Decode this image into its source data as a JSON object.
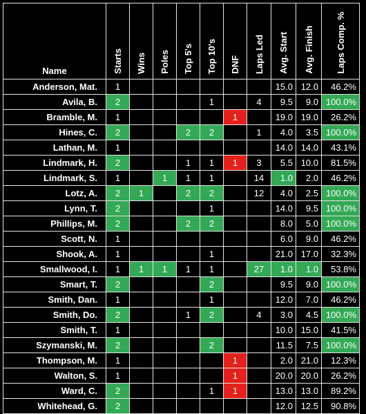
{
  "columns": [
    "Name",
    "Starts",
    "Wins",
    "Poles",
    "Top 5's",
    "Top 10's",
    "DNF",
    "Laps Led",
    "Avg. Start",
    "Avg. Finish",
    "Laps Comp. %"
  ],
  "colors": {
    "highlight_green": "#33a855",
    "highlight_red": "#e4211c",
    "background": "#000000",
    "text": "#ffffff"
  },
  "rows": [
    {
      "name": "Anderson, Mat.",
      "starts": "1",
      "wins": "",
      "poles": "",
      "top5": "",
      "top10": "",
      "dnf": "",
      "laps_led": "",
      "avg_start": "15.0",
      "avg_finish": "12.0",
      "laps_comp": "46.2%",
      "hl": []
    },
    {
      "name": "Avila, B.",
      "starts": "2",
      "wins": "",
      "poles": "",
      "top5": "",
      "top10": "1",
      "dnf": "",
      "laps_led": "4",
      "avg_start": "9.5",
      "avg_finish": "9.0",
      "laps_comp": "100.0%",
      "hl": [
        "starts",
        "laps_comp"
      ]
    },
    {
      "name": "Bramble, M.",
      "starts": "1",
      "wins": "",
      "poles": "",
      "top5": "",
      "top10": "",
      "dnf": "1",
      "laps_led": "",
      "avg_start": "19.0",
      "avg_finish": "19.0",
      "laps_comp": "26.2%",
      "hl": [
        "dnf"
      ]
    },
    {
      "name": "Hines, C.",
      "starts": "2",
      "wins": "",
      "poles": "",
      "top5": "2",
      "top10": "2",
      "dnf": "",
      "laps_led": "1",
      "avg_start": "4.0",
      "avg_finish": "3.5",
      "laps_comp": "100.0%",
      "hl": [
        "starts",
        "top5",
        "top10",
        "laps_comp"
      ]
    },
    {
      "name": "Lathan, M.",
      "starts": "1",
      "wins": "",
      "poles": "",
      "top5": "",
      "top10": "",
      "dnf": "",
      "laps_led": "",
      "avg_start": "14.0",
      "avg_finish": "14.0",
      "laps_comp": "43.1%",
      "hl": []
    },
    {
      "name": "Lindmark, H.",
      "starts": "2",
      "wins": "",
      "poles": "",
      "top5": "1",
      "top10": "1",
      "dnf": "1",
      "laps_led": "3",
      "avg_start": "5.5",
      "avg_finish": "10.0",
      "laps_comp": "81.5%",
      "hl": [
        "starts",
        "dnf"
      ]
    },
    {
      "name": "Lindmark, S.",
      "starts": "1",
      "wins": "",
      "poles": "1",
      "top5": "1",
      "top10": "1",
      "dnf": "",
      "laps_led": "14",
      "avg_start": "1.0",
      "avg_finish": "2.0",
      "laps_comp": "46.2%",
      "hl": [
        "poles",
        "avg_start"
      ]
    },
    {
      "name": "Lotz, A.",
      "starts": "2",
      "wins": "1",
      "poles": "",
      "top5": "2",
      "top10": "2",
      "dnf": "",
      "laps_led": "12",
      "avg_start": "4.0",
      "avg_finish": "2.5",
      "laps_comp": "100.0%",
      "hl": [
        "starts",
        "wins",
        "top5",
        "top10",
        "laps_comp"
      ]
    },
    {
      "name": "Lynn, T.",
      "starts": "2",
      "wins": "",
      "poles": "",
      "top5": "",
      "top10": "1",
      "dnf": "",
      "laps_led": "",
      "avg_start": "14.0",
      "avg_finish": "9.5",
      "laps_comp": "100.0%",
      "hl": [
        "starts",
        "laps_comp"
      ]
    },
    {
      "name": "Phillips, M.",
      "starts": "2",
      "wins": "",
      "poles": "",
      "top5": "2",
      "top10": "2",
      "dnf": "",
      "laps_led": "",
      "avg_start": "8.0",
      "avg_finish": "5.0",
      "laps_comp": "100.0%",
      "hl": [
        "starts",
        "top5",
        "top10",
        "laps_comp"
      ]
    },
    {
      "name": "Scott, N.",
      "starts": "1",
      "wins": "",
      "poles": "",
      "top5": "",
      "top10": "",
      "dnf": "",
      "laps_led": "",
      "avg_start": "6.0",
      "avg_finish": "9.0",
      "laps_comp": "46.2%",
      "hl": []
    },
    {
      "name": "Shook, A.",
      "starts": "1",
      "wins": "",
      "poles": "",
      "top5": "",
      "top10": "1",
      "dnf": "",
      "laps_led": "",
      "avg_start": "21.0",
      "avg_finish": "17.0",
      "laps_comp": "32.3%",
      "hl": []
    },
    {
      "name": "Smallwood, I.",
      "starts": "1",
      "wins": "1",
      "poles": "1",
      "top5": "1",
      "top10": "1",
      "dnf": "",
      "laps_led": "27",
      "avg_start": "1.0",
      "avg_finish": "1.0",
      "laps_comp": "53.8%",
      "hl": [
        "wins",
        "poles",
        "laps_led",
        "avg_start",
        "avg_finish"
      ]
    },
    {
      "name": "Smart, T.",
      "starts": "2",
      "wins": "",
      "poles": "",
      "top5": "",
      "top10": "2",
      "dnf": "",
      "laps_led": "",
      "avg_start": "9.5",
      "avg_finish": "9.0",
      "laps_comp": "100.0%",
      "hl": [
        "starts",
        "top10",
        "laps_comp"
      ]
    },
    {
      "name": "Smith, Dan.",
      "starts": "1",
      "wins": "",
      "poles": "",
      "top5": "",
      "top10": "1",
      "dnf": "",
      "laps_led": "",
      "avg_start": "12.0",
      "avg_finish": "7.0",
      "laps_comp": "46.2%",
      "hl": []
    },
    {
      "name": "Smith, Do.",
      "starts": "2",
      "wins": "",
      "poles": "",
      "top5": "1",
      "top10": "2",
      "dnf": "",
      "laps_led": "4",
      "avg_start": "3.0",
      "avg_finish": "4.5",
      "laps_comp": "100.0%",
      "hl": [
        "starts",
        "top10",
        "laps_comp"
      ]
    },
    {
      "name": "Smith, T.",
      "starts": "1",
      "wins": "",
      "poles": "",
      "top5": "",
      "top10": "",
      "dnf": "",
      "laps_led": "",
      "avg_start": "10.0",
      "avg_finish": "15.0",
      "laps_comp": "41.5%",
      "hl": []
    },
    {
      "name": "Szymanski, M.",
      "starts": "2",
      "wins": "",
      "poles": "",
      "top5": "",
      "top10": "2",
      "dnf": "",
      "laps_led": "",
      "avg_start": "11.5",
      "avg_finish": "7.5",
      "laps_comp": "100.0%",
      "hl": [
        "starts",
        "top10",
        "laps_comp"
      ]
    },
    {
      "name": "Thompson, M.",
      "starts": "1",
      "wins": "",
      "poles": "",
      "top5": "",
      "top10": "",
      "dnf": "1",
      "laps_led": "",
      "avg_start": "2.0",
      "avg_finish": "21.0",
      "laps_comp": "12.3%",
      "hl": [
        "dnf"
      ]
    },
    {
      "name": "Walton, S.",
      "starts": "1",
      "wins": "",
      "poles": "",
      "top5": "",
      "top10": "",
      "dnf": "1",
      "laps_led": "",
      "avg_start": "20.0",
      "avg_finish": "20.0",
      "laps_comp": "26.2%",
      "hl": [
        "dnf"
      ]
    },
    {
      "name": "Ward, C.",
      "starts": "2",
      "wins": "",
      "poles": "",
      "top5": "",
      "top10": "1",
      "dnf": "1",
      "laps_led": "",
      "avg_start": "13.0",
      "avg_finish": "13.0",
      "laps_comp": "89.2%",
      "hl": [
        "starts",
        "dnf"
      ]
    },
    {
      "name": "Whitehead, G.",
      "starts": "2",
      "wins": "",
      "poles": "",
      "top5": "",
      "top10": "",
      "dnf": "",
      "laps_led": "",
      "avg_start": "12.0",
      "avg_finish": "12.5",
      "laps_comp": "90.8%",
      "hl": [
        "starts"
      ]
    }
  ]
}
